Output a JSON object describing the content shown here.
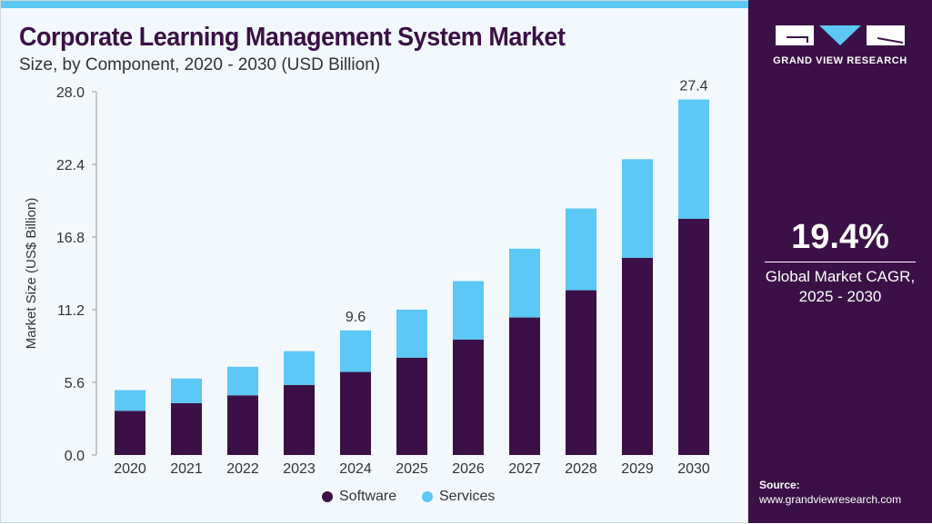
{
  "header": {
    "title": "Corporate Learning Management System Market",
    "subtitle": "Size, by Component, 2020 - 2030 (USD Billion)"
  },
  "sidebar": {
    "logo_text": "GRAND VIEW RESEARCH",
    "cagr_value": "19.4%",
    "cagr_label_1": "Global Market CAGR,",
    "cagr_label_2": "2025 - 2030",
    "source_label": "Source:",
    "source_url": "www.grandviewresearch.com"
  },
  "colors": {
    "software": "#3a1046",
    "services": "#5bc8f5",
    "accent": "#5bc8f5",
    "sidebar": "#3a1046"
  },
  "chart_data": {
    "type": "bar",
    "stacked": true,
    "title": "Corporate Learning Management System Market",
    "ylabel": "Market Size (US$ Billion)",
    "xlabel": "",
    "ylim": [
      0,
      28
    ],
    "yticks": [
      "0.0",
      "5.6",
      "11.2",
      "16.8",
      "22.4",
      "28.0"
    ],
    "categories": [
      "2020",
      "2021",
      "2022",
      "2023",
      "2024",
      "2025",
      "2026",
      "2027",
      "2028",
      "2029",
      "2030"
    ],
    "series": [
      {
        "name": "Software",
        "values": [
          3.4,
          4.0,
          4.6,
          5.4,
          6.4,
          7.5,
          8.9,
          10.6,
          12.7,
          15.2,
          18.2
        ]
      },
      {
        "name": "Services",
        "values": [
          1.6,
          1.9,
          2.2,
          2.6,
          3.2,
          3.7,
          4.5,
          5.3,
          6.3,
          7.6,
          9.2
        ]
      }
    ],
    "annotations": [
      {
        "category": "2024",
        "text": "9.6"
      },
      {
        "category": "2030",
        "text": "27.4"
      }
    ],
    "legend": "bottom-center"
  }
}
